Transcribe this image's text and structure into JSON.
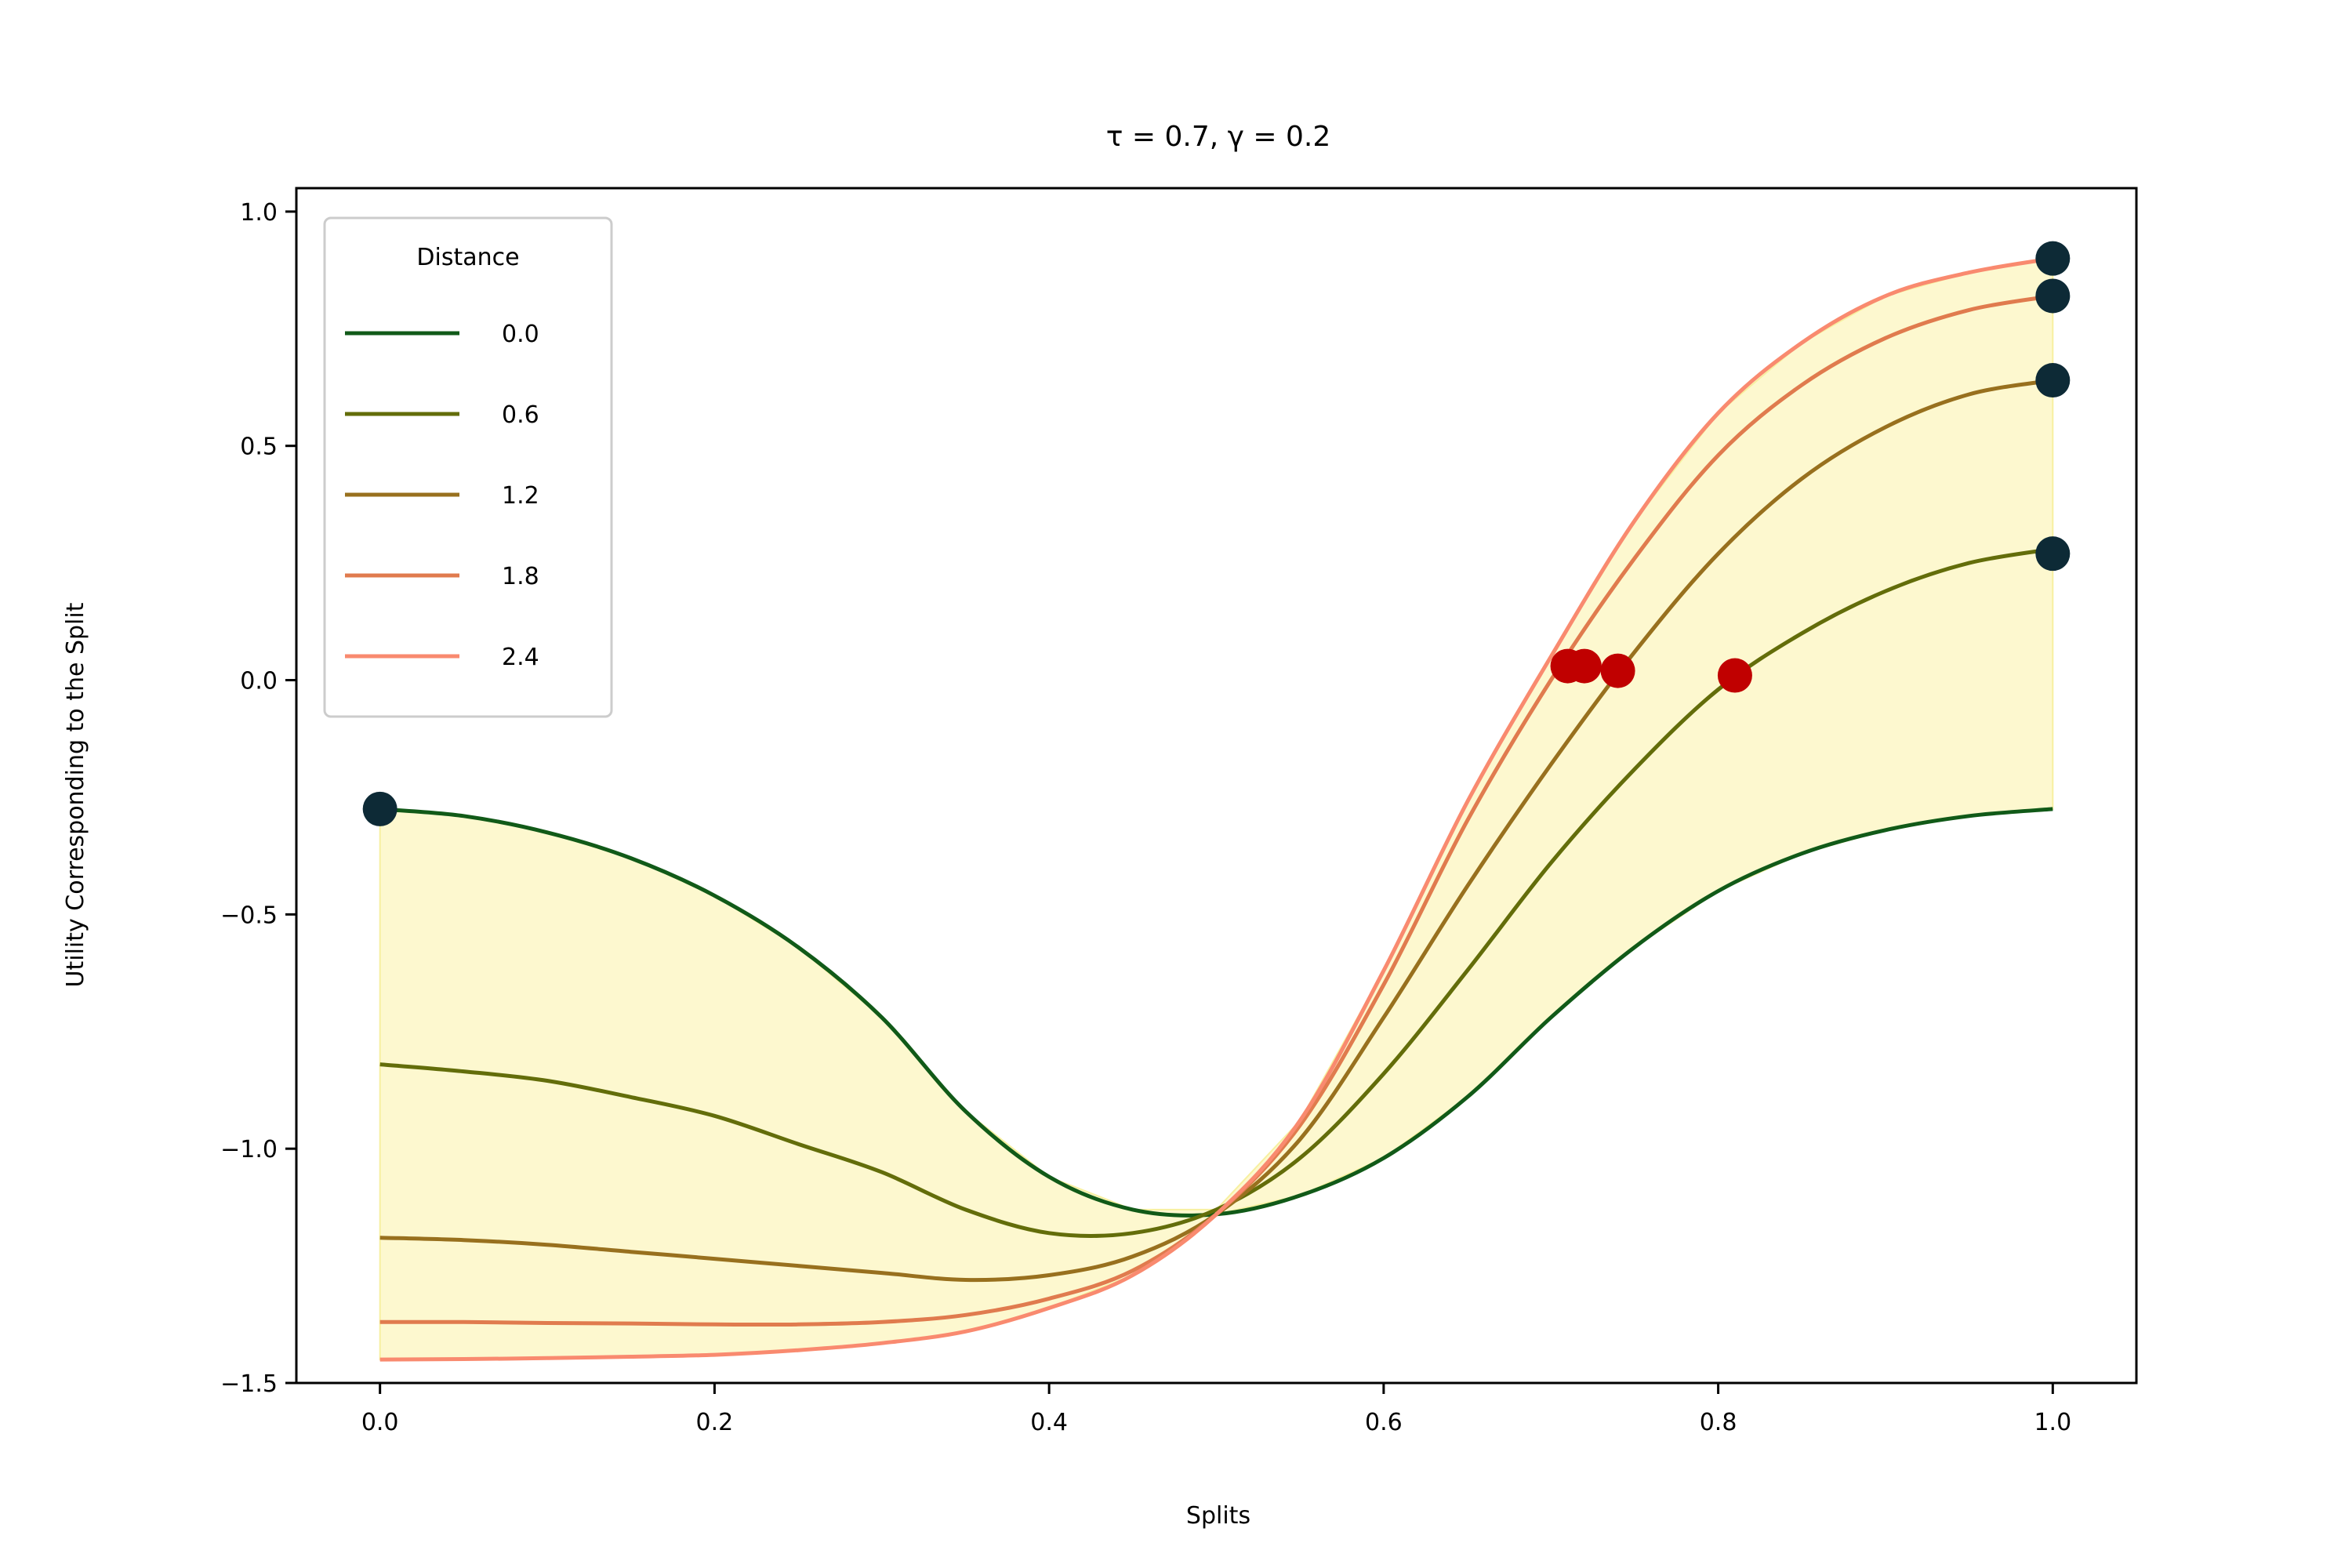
{
  "chart_data": {
    "type": "line",
    "title": "τ = 0.7, γ = 0.2",
    "xlabel": "Splits",
    "ylabel": "Utility Corresponding to the Split",
    "xlim": [
      -0.05,
      1.05
    ],
    "ylim": [
      -1.5,
      1.05
    ],
    "xticks": [
      0.0,
      0.2,
      0.4,
      0.6,
      0.8,
      1.0
    ],
    "xtick_labels": [
      "0.0",
      "0.2",
      "0.4",
      "0.6",
      "0.8",
      "1.0"
    ],
    "yticks": [
      1.0,
      0.5,
      0.0,
      -0.5,
      -1.0,
      -1.5
    ],
    "ytick_labels": [
      "1.0",
      "0.5",
      "0.0",
      "−0.5",
      "−1.0",
      "−1.5"
    ],
    "grid": false,
    "legend": {
      "title": "Distance",
      "position": "top-left"
    },
    "fill_color": "#fdf8cf",
    "series": [
      {
        "name": "0.0",
        "color": "#115a18",
        "x": [
          0.0,
          0.05,
          0.1,
          0.15,
          0.2,
          0.25,
          0.3,
          0.35,
          0.4,
          0.45,
          0.5,
          0.55,
          0.6,
          0.65,
          0.7,
          0.75,
          0.8,
          0.85,
          0.9,
          0.95,
          1.0
        ],
        "y": [
          -0.275,
          -0.29,
          -0.325,
          -0.38,
          -0.46,
          -0.57,
          -0.72,
          -0.92,
          -1.06,
          -1.13,
          -1.14,
          -1.1,
          -1.02,
          -0.89,
          -0.72,
          -0.57,
          -0.45,
          -0.37,
          -0.32,
          -0.29,
          -0.275
        ]
      },
      {
        "name": "0.6",
        "color": "#636d0a",
        "x": [
          0.0,
          0.05,
          0.1,
          0.15,
          0.2,
          0.25,
          0.3,
          0.35,
          0.4,
          0.45,
          0.5,
          0.55,
          0.6,
          0.65,
          0.7,
          0.75,
          0.8,
          0.85,
          0.9,
          0.95,
          1.0
        ],
        "y": [
          -0.82,
          -0.835,
          -0.855,
          -0.89,
          -0.93,
          -0.99,
          -1.05,
          -1.13,
          -1.18,
          -1.18,
          -1.13,
          -1.02,
          -0.84,
          -0.62,
          -0.39,
          -0.19,
          -0.02,
          0.1,
          0.19,
          0.25,
          0.28
        ]
      },
      {
        "name": "1.2",
        "color": "#98701e",
        "x": [
          0.0,
          0.05,
          0.1,
          0.15,
          0.2,
          0.25,
          0.3,
          0.35,
          0.4,
          0.45,
          0.5,
          0.55,
          0.6,
          0.65,
          0.7,
          0.75,
          0.8,
          0.85,
          0.9,
          0.95,
          1.0
        ],
        "y": [
          -1.19,
          -1.195,
          -1.205,
          -1.22,
          -1.235,
          -1.25,
          -1.265,
          -1.28,
          -1.27,
          -1.23,
          -1.14,
          -0.98,
          -0.72,
          -0.44,
          -0.18,
          0.06,
          0.27,
          0.43,
          0.54,
          0.61,
          0.64
        ]
      },
      {
        "name": "1.8",
        "color": "#e07b4e",
        "x": [
          0.0,
          0.05,
          0.1,
          0.15,
          0.2,
          0.25,
          0.3,
          0.35,
          0.4,
          0.45,
          0.5,
          0.55,
          0.6,
          0.65,
          0.7,
          0.75,
          0.8,
          0.85,
          0.9,
          0.95,
          1.0
        ],
        "y": [
          -1.37,
          -1.37,
          -1.372,
          -1.373,
          -1.375,
          -1.375,
          -1.37,
          -1.355,
          -1.32,
          -1.26,
          -1.14,
          -0.95,
          -0.65,
          -0.3,
          0.0,
          0.26,
          0.48,
          0.63,
          0.73,
          0.79,
          0.82
        ]
      },
      {
        "name": "2.4",
        "color": "#f98a6f",
        "x": [
          0.0,
          0.05,
          0.1,
          0.15,
          0.2,
          0.25,
          0.3,
          0.35,
          0.4,
          0.45,
          0.5,
          0.55,
          0.6,
          0.65,
          0.7,
          0.75,
          0.8,
          0.85,
          0.9,
          0.95,
          1.0
        ],
        "y": [
          -1.45,
          -1.449,
          -1.447,
          -1.444,
          -1.44,
          -1.43,
          -1.415,
          -1.39,
          -1.34,
          -1.27,
          -1.14,
          -0.94,
          -0.62,
          -0.26,
          0.05,
          0.34,
          0.57,
          0.72,
          0.82,
          0.87,
          0.9
        ]
      }
    ],
    "markers": [
      {
        "x": 0.0,
        "y": -0.275,
        "color": "#0d2a36"
      },
      {
        "x": 1.0,
        "y": 0.27,
        "color": "#0d2a36"
      },
      {
        "x": 1.0,
        "y": 0.64,
        "color": "#0d2a36"
      },
      {
        "x": 1.0,
        "y": 0.82,
        "color": "#0d2a36"
      },
      {
        "x": 1.0,
        "y": 0.9,
        "color": "#0d2a36"
      },
      {
        "x": 0.81,
        "y": 0.01,
        "color": "#c00000"
      },
      {
        "x": 0.74,
        "y": 0.02,
        "color": "#c00000"
      },
      {
        "x": 0.72,
        "y": 0.03,
        "color": "#c00000"
      },
      {
        "x": 0.71,
        "y": 0.03,
        "color": "#c00000"
      }
    ]
  }
}
